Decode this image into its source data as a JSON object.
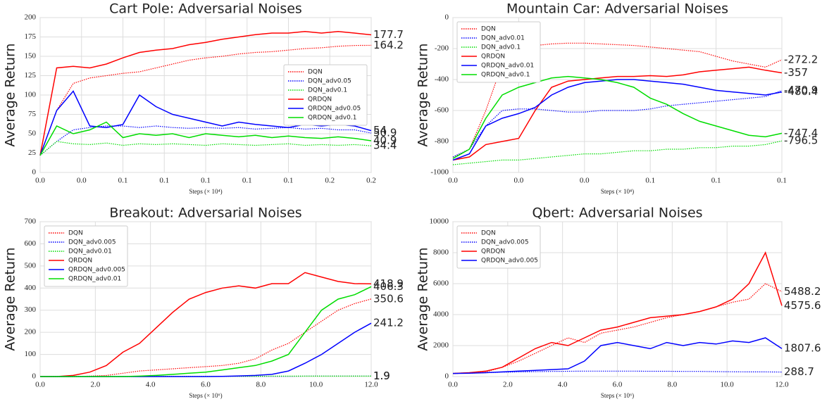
{
  "chart_data": [
    {
      "type": "line",
      "title": "Cart Pole: Adversarial Noises",
      "xlabel": "Steps (× 10⁴)",
      "ylabel": "Average Return",
      "legend": "center right",
      "grid": true,
      "x": [
        0,
        0.01,
        0.02,
        0.03,
        0.04,
        0.05,
        0.06,
        0.07,
        0.08,
        0.09,
        0.1,
        0.11,
        0.12,
        0.13,
        0.14,
        0.15,
        0.16,
        0.17,
        0.18,
        0.19,
        0.2
      ],
      "xlim": [
        0,
        0.2
      ],
      "xticks": [
        {
          "value": 0,
          "label": "0.0"
        },
        {
          "value": 0.025,
          "label": "0.0"
        },
        {
          "value": 0.05,
          "label": "0.1"
        },
        {
          "value": 0.075,
          "label": "0.1"
        },
        {
          "value": 0.1,
          "label": "0.1"
        },
        {
          "value": 0.125,
          "label": "0.1"
        },
        {
          "value": 0.15,
          "label": "0.1"
        },
        {
          "value": 0.175,
          "label": "0.2"
        },
        {
          "value": 0.2,
          "label": "0.2"
        }
      ],
      "ylim": [
        0,
        200
      ],
      "yticks": [
        0,
        25,
        50,
        75,
        100,
        125,
        150,
        175,
        200
      ],
      "series": [
        {
          "name": "DQN",
          "color": "#ff0000",
          "style": "dotted",
          "values": [
            22,
            80,
            115,
            122,
            125,
            128,
            130,
            135,
            140,
            145,
            148,
            150,
            153,
            155,
            156,
            158,
            160,
            161,
            163,
            164,
            164.2
          ]
        },
        {
          "name": "DQN_adv0.05",
          "color": "#0000ff",
          "style": "dotted",
          "values": [
            22,
            40,
            55,
            58,
            60,
            60,
            58,
            60,
            58,
            57,
            58,
            57,
            58,
            56,
            57,
            58,
            56,
            57,
            55,
            55,
            50.9
          ]
        },
        {
          "name": "DQN_adv0.1",
          "color": "#00dd00",
          "style": "dotted",
          "values": [
            22,
            40,
            37,
            36,
            38,
            35,
            37,
            36,
            37,
            36,
            35,
            37,
            36,
            35,
            36,
            37,
            35,
            36,
            35,
            36,
            34.4
          ]
        },
        {
          "name": "QRDQN",
          "color": "#ff0000",
          "style": "solid",
          "values": [
            22,
            135,
            137,
            135,
            140,
            148,
            155,
            158,
            160,
            165,
            168,
            172,
            175,
            178,
            180,
            180,
            182,
            180,
            182,
            180,
            177.7
          ]
        },
        {
          "name": "QRDQN_adv0.05",
          "color": "#0000ff",
          "style": "solid",
          "values": [
            22,
            80,
            105,
            60,
            58,
            62,
            100,
            85,
            75,
            70,
            65,
            60,
            65,
            62,
            60,
            58,
            62,
            60,
            62,
            60,
            54.0
          ]
        },
        {
          "name": "QRDQN_adv0.1",
          "color": "#00dd00",
          "style": "solid",
          "values": [
            22,
            60,
            50,
            55,
            65,
            45,
            50,
            48,
            50,
            45,
            50,
            48,
            46,
            48,
            45,
            47,
            45,
            44,
            46,
            44,
            40.9
          ]
        }
      ]
    },
    {
      "type": "line",
      "title": "Mountain Car: Adversarial Noises",
      "xlabel": "Steps (× 10⁴)",
      "ylabel": "Average Return",
      "legend": "upper left",
      "grid": true,
      "x": [
        0,
        0.005,
        0.01,
        0.015,
        0.02,
        0.025,
        0.03,
        0.035,
        0.04,
        0.045,
        0.05,
        0.055,
        0.06,
        0.065,
        0.07,
        0.075,
        0.08,
        0.085,
        0.09,
        0.095,
        0.1
      ],
      "xlim": [
        0,
        0.1
      ],
      "xticks": [
        {
          "value": 0,
          "label": "0.0"
        },
        {
          "value": 0.02,
          "label": "0.0"
        },
        {
          "value": 0.04,
          "label": "0.0"
        },
        {
          "value": 0.06,
          "label": "0.1"
        },
        {
          "value": 0.08,
          "label": "0.1"
        },
        {
          "value": 0.1,
          "label": "0.1"
        }
      ],
      "ylim": [
        -1000,
        0
      ],
      "yticks": [
        -1000,
        -800,
        -600,
        -400,
        -200,
        0
      ],
      "series": [
        {
          "name": "DQN",
          "color": "#ff0000",
          "style": "dotted",
          "values": [
            -900,
            -850,
            -600,
            -300,
            -200,
            -180,
            -170,
            -165,
            -165,
            -170,
            -175,
            -180,
            -190,
            -200,
            -210,
            -220,
            -250,
            -280,
            -300,
            -320,
            -272.2
          ]
        },
        {
          "name": "DQN_adv0.01",
          "color": "#0000ff",
          "style": "dotted",
          "values": [
            -900,
            -850,
            -700,
            -600,
            -590,
            -590,
            -600,
            -610,
            -610,
            -600,
            -600,
            -600,
            -590,
            -570,
            -560,
            -550,
            -540,
            -530,
            -520,
            -510,
            -470.9
          ]
        },
        {
          "name": "DQN_adv0.1",
          "color": "#00dd00",
          "style": "dotted",
          "values": [
            -950,
            -940,
            -930,
            -920,
            -920,
            -910,
            -900,
            -890,
            -880,
            -880,
            -870,
            -860,
            -860,
            -850,
            -850,
            -840,
            -840,
            -830,
            -830,
            -820,
            -796.5
          ]
        },
        {
          "name": "QRDQN",
          "color": "#ff0000",
          "style": "solid",
          "values": [
            -920,
            -900,
            -820,
            -800,
            -780,
            -600,
            -450,
            -410,
            -400,
            -390,
            -380,
            -380,
            -375,
            -380,
            -370,
            -350,
            -340,
            -330,
            -320,
            -340,
            -357.0
          ]
        },
        {
          "name": "QRDQN_adv0.01",
          "color": "#0000ff",
          "style": "solid",
          "values": [
            -920,
            -880,
            -700,
            -650,
            -620,
            -580,
            -500,
            -450,
            -420,
            -410,
            -400,
            -400,
            -410,
            -420,
            -430,
            -450,
            -470,
            -480,
            -490,
            -500,
            -480.4
          ]
        },
        {
          "name": "QRDQN_adv0.1",
          "color": "#00dd00",
          "style": "solid",
          "values": [
            -910,
            -850,
            -650,
            -500,
            -450,
            -420,
            -390,
            -380,
            -390,
            -400,
            -420,
            -450,
            -520,
            -560,
            -620,
            -670,
            -700,
            -730,
            -760,
            -770,
            -747.4
          ]
        }
      ]
    },
    {
      "type": "line",
      "title": "Breakout: Adversarial Noises",
      "xlabel": "Steps (× 10⁶)",
      "ylabel": "Average Return",
      "legend": "upper left",
      "grid": true,
      "x": [
        0,
        0.6,
        1.2,
        1.8,
        2.4,
        3,
        3.6,
        4.2,
        4.8,
        5.4,
        6,
        6.6,
        7.2,
        7.8,
        8.4,
        9,
        9.6,
        10.2,
        10.8,
        11.4,
        12
      ],
      "xlim": [
        0,
        12
      ],
      "xticks": [
        {
          "value": 0,
          "label": "0.0"
        },
        {
          "value": 2,
          "label": "2.0"
        },
        {
          "value": 4,
          "label": "4.0"
        },
        {
          "value": 6,
          "label": "6.0"
        },
        {
          "value": 8,
          "label": "8.0"
        },
        {
          "value": 10,
          "label": "10.0"
        },
        {
          "value": 12,
          "label": "12.0"
        }
      ],
      "ylim": [
        0,
        700
      ],
      "yticks": [
        0,
        100,
        200,
        300,
        400,
        500,
        600,
        700
      ],
      "series": [
        {
          "name": "DQN",
          "color": "#ff0000",
          "style": "dotted",
          "values": [
            0,
            0,
            0,
            2,
            5,
            15,
            25,
            30,
            35,
            40,
            45,
            50,
            60,
            80,
            120,
            150,
            200,
            250,
            300,
            330,
            350.6
          ]
        },
        {
          "name": "DQN_adv0.005",
          "color": "#0000ff",
          "style": "dotted",
          "values": [
            0,
            0,
            0,
            0,
            0,
            0,
            0,
            1,
            1,
            1,
            1,
            1,
            1,
            1,
            1,
            1,
            2,
            2,
            2,
            2,
            1.9
          ]
        },
        {
          "name": "DQN_adv0.01",
          "color": "#00dd00",
          "style": "dotted",
          "values": [
            0,
            0,
            0,
            0,
            0,
            0,
            1,
            1,
            1,
            1,
            1,
            1,
            1,
            1,
            2,
            2,
            2,
            2,
            2,
            2,
            1.9
          ]
        },
        {
          "name": "QRDQN",
          "color": "#ff0000",
          "style": "solid",
          "values": [
            0,
            0,
            5,
            20,
            50,
            110,
            150,
            220,
            290,
            350,
            380,
            400,
            410,
            400,
            420,
            420,
            470,
            450,
            430,
            420,
            418.9
          ]
        },
        {
          "name": "QRDQN_adv0.005",
          "color": "#0000ff",
          "style": "solid",
          "values": [
            0,
            0,
            0,
            0,
            0,
            0,
            0,
            0,
            0,
            0,
            0,
            1,
            3,
            5,
            10,
            25,
            60,
            100,
            150,
            200,
            241.2
          ]
        },
        {
          "name": "QRDQN_adv0.01",
          "color": "#00dd00",
          "style": "solid",
          "values": [
            0,
            0,
            0,
            0,
            0,
            0,
            2,
            5,
            10,
            15,
            20,
            30,
            40,
            50,
            70,
            100,
            200,
            300,
            350,
            370,
            406.3
          ]
        }
      ]
    },
    {
      "type": "line",
      "title": "Qbert: Adversarial Noises",
      "xlabel": "Steps (× 10⁶)",
      "ylabel": "Average Return",
      "legend": "upper left",
      "grid": true,
      "x": [
        0,
        0.6,
        1.2,
        1.8,
        2.4,
        3,
        3.6,
        4.2,
        4.8,
        5.4,
        6,
        6.6,
        7.2,
        7.8,
        8.4,
        9,
        9.6,
        10.2,
        10.8,
        11.4,
        12
      ],
      "xlim": [
        0,
        12
      ],
      "xticks": [
        {
          "value": 0,
          "label": "0.0"
        },
        {
          "value": 2,
          "label": "2.0"
        },
        {
          "value": 4,
          "label": "4.0"
        },
        {
          "value": 6,
          "label": "6.0"
        },
        {
          "value": 8,
          "label": "8.0"
        },
        {
          "value": 10,
          "label": "10.0"
        },
        {
          "value": 12,
          "label": "12.0"
        }
      ],
      "ylim": [
        0,
        10000
      ],
      "yticks": [
        0,
        2000,
        4000,
        6000,
        8000,
        10000
      ],
      "series": [
        {
          "name": "DQN",
          "color": "#ff0000",
          "style": "dotted",
          "values": [
            200,
            250,
            300,
            600,
            1000,
            1500,
            2000,
            2500,
            2200,
            2800,
            3000,
            3200,
            3500,
            3800,
            4000,
            4200,
            4500,
            4800,
            5000,
            6000,
            5488.2
          ]
        },
        {
          "name": "DQN_adv0.005",
          "color": "#0000ff",
          "style": "dotted",
          "values": [
            200,
            220,
            250,
            280,
            300,
            320,
            330,
            340,
            350,
            350,
            350,
            350,
            340,
            340,
            330,
            330,
            320,
            310,
            300,
            300,
            288.7
          ]
        },
        {
          "name": "QRDQN",
          "color": "#ff0000",
          "style": "solid",
          "values": [
            200,
            250,
            350,
            600,
            1200,
            1800,
            2200,
            2000,
            2500,
            3000,
            3200,
            3500,
            3800,
            3900,
            4000,
            4200,
            4500,
            5000,
            6000,
            8000,
            4575.6
          ]
        },
        {
          "name": "QRDQN_adv0.005",
          "color": "#0000ff",
          "style": "solid",
          "values": [
            200,
            220,
            250,
            300,
            350,
            400,
            450,
            500,
            1000,
            2000,
            2200,
            2000,
            1800,
            2200,
            2000,
            2200,
            2100,
            2300,
            2200,
            2500,
            1807.6
          ]
        }
      ]
    }
  ]
}
